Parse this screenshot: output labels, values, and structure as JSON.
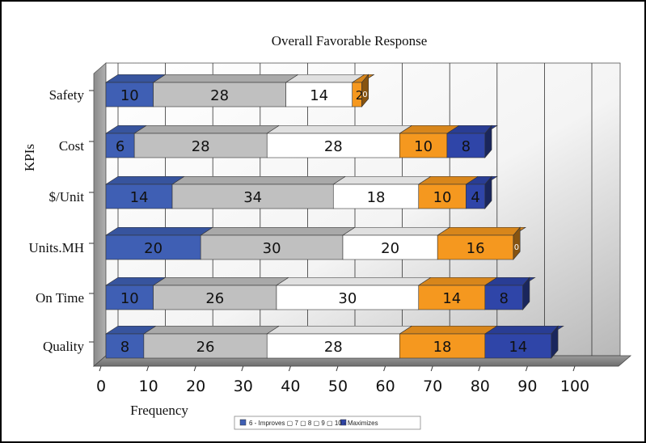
{
  "chart_data": {
    "type": "bar",
    "orientation": "horizontal",
    "stacked": true,
    "three_d": true,
    "title": "Overall Favorable Response",
    "xlabel": "Frequency",
    "ylabel": "KPIs",
    "xlim": [
      0,
      100
    ],
    "xticks": [
      0,
      10,
      20,
      30,
      40,
      50,
      60,
      70,
      80,
      90,
      100
    ],
    "grid": true,
    "legend_position": "bottom",
    "legend_label": "6 - Improves ▢ 7 ▢ 8 ▢ 9 ▢ 10 - Maximizes",
    "categories": [
      "Safety",
      "Cost",
      "$/Unit",
      "Units.MH",
      "On Time",
      "Quality"
    ],
    "series": [
      {
        "name": "6 - Improves",
        "color": "#3f5fb4",
        "values": [
          10,
          6,
          14,
          20,
          10,
          8
        ]
      },
      {
        "name": "7",
        "color": "#c0c0c0",
        "values": [
          28,
          28,
          34,
          30,
          26,
          26
        ]
      },
      {
        "name": "8",
        "color": "#ffffff",
        "values": [
          14,
          28,
          18,
          20,
          30,
          28
        ]
      },
      {
        "name": "9",
        "color": "#f5981f",
        "values": [
          2,
          10,
          10,
          16,
          14,
          18
        ]
      },
      {
        "name": "10 - Maximizes",
        "color": "#2f45a8",
        "values": [
          0,
          8,
          4,
          0,
          8,
          14
        ]
      }
    ]
  }
}
